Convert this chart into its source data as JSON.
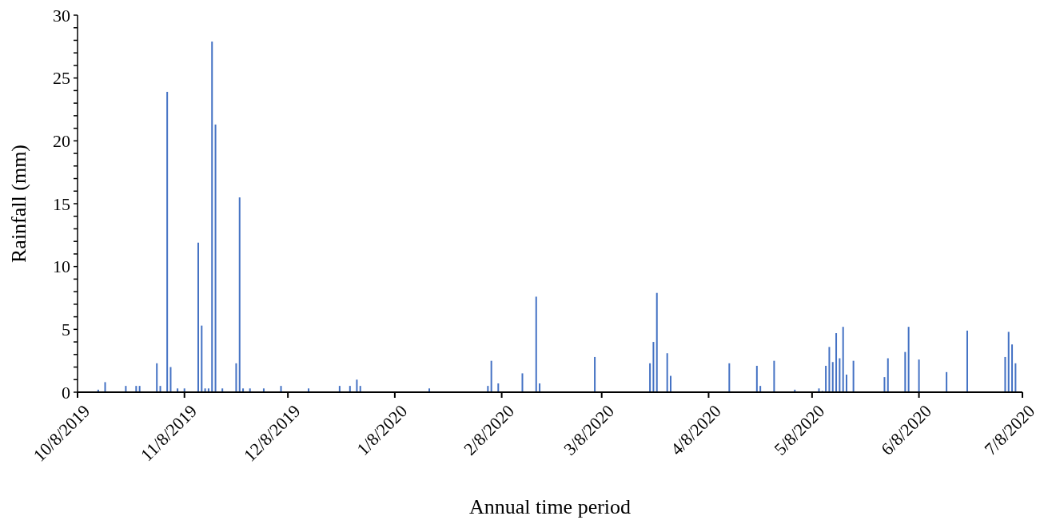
{
  "chart_data": {
    "type": "bar",
    "xlabel": "Annual time period",
    "ylabel": "Rainfall (mm)",
    "color": "#4472c4",
    "x": [
      "2019-10-14",
      "2019-10-16",
      "2019-10-22",
      "2019-10-25",
      "2019-10-26",
      "2019-10-31",
      "2019-11-01",
      "2019-11-03",
      "2019-11-04",
      "2019-11-06",
      "2019-11-08",
      "2019-11-12",
      "2019-11-13",
      "2019-11-14",
      "2019-11-15",
      "2019-11-16",
      "2019-11-17",
      "2019-11-19",
      "2019-11-23",
      "2019-11-24",
      "2019-11-25",
      "2019-11-27",
      "2019-12-01",
      "2019-12-06",
      "2019-12-14",
      "2019-12-23",
      "2019-12-26",
      "2019-12-28",
      "2019-12-29",
      "2020-01-18",
      "2020-02-04",
      "2020-02-05",
      "2020-02-07",
      "2020-02-14",
      "2020-02-18",
      "2020-02-19",
      "2020-03-06",
      "2020-03-22",
      "2020-03-23",
      "2020-03-24",
      "2020-03-27",
      "2020-03-28",
      "2020-04-14",
      "2020-04-22",
      "2020-04-23",
      "2020-04-27",
      "2020-05-03",
      "2020-05-10",
      "2020-05-11",
      "2020-05-12",
      "2020-05-13",
      "2020-05-14",
      "2020-05-15",
      "2020-05-16",
      "2020-05-17",
      "2020-05-18",
      "2020-05-20",
      "2020-05-29",
      "2020-05-30",
      "2020-06-04",
      "2020-06-05",
      "2020-06-08",
      "2020-06-16",
      "2020-06-22",
      "2020-07-03",
      "2020-07-04",
      "2020-07-05",
      "2020-07-06"
    ],
    "values": [
      0.2,
      0.8,
      0.5,
      0.5,
      0.5,
      2.3,
      0.5,
      23.9,
      2.0,
      0.3,
      0.3,
      11.9,
      5.3,
      0.3,
      0.3,
      27.9,
      21.3,
      0.3,
      2.3,
      15.5,
      0.3,
      0.3,
      0.3,
      0.5,
      0.3,
      0.5,
      0.5,
      1.0,
      0.5,
      0.3,
      0.5,
      2.5,
      0.7,
      1.5,
      7.6,
      0.7,
      2.8,
      2.3,
      4.0,
      7.9,
      3.1,
      1.3,
      2.3,
      2.1,
      0.5,
      2.5,
      0.2,
      0.3,
      0.1,
      2.1,
      3.6,
      2.4,
      4.7,
      2.7,
      5.2,
      1.4,
      2.5,
      1.2,
      2.7,
      3.2,
      5.2,
      2.6,
      1.6,
      4.9,
      2.8,
      4.8,
      3.8,
      2.3
    ],
    "xlim": [
      "2019-10-08",
      "2020-07-08"
    ],
    "xticks": [
      {
        "value": "2019-10-08",
        "label": "10/8/2019"
      },
      {
        "value": "2019-11-08",
        "label": "11/8/2019"
      },
      {
        "value": "2019-12-08",
        "label": "12/8/2019"
      },
      {
        "value": "2020-01-08",
        "label": "1/8/2020"
      },
      {
        "value": "2020-02-08",
        "label": "2/8/2020"
      },
      {
        "value": "2020-03-08",
        "label": "3/8/2020"
      },
      {
        "value": "2020-04-08",
        "label": "4/8/2020"
      },
      {
        "value": "2020-05-08",
        "label": "5/8/2020"
      },
      {
        "value": "2020-06-08",
        "label": "6/8/2020"
      },
      {
        "value": "2020-07-08",
        "label": "7/8/2020"
      }
    ],
    "ylim": [
      0,
      30
    ],
    "yticks": [
      0,
      {
        "value": 1,
        "label": null
      },
      {
        "value": 2,
        "label": null
      },
      {
        "value": 3,
        "label": null
      },
      {
        "value": 4,
        "label": null
      },
      5,
      {
        "value": 6,
        "label": null
      },
      {
        "value": 7,
        "label": null
      },
      {
        "value": 8,
        "label": null
      },
      {
        "value": 9,
        "label": null
      },
      10,
      {
        "value": 11,
        "label": null
      },
      {
        "value": 12,
        "label": null
      },
      {
        "value": 13,
        "label": null
      },
      {
        "value": 14,
        "label": null
      },
      15,
      {
        "value": 16,
        "label": null
      },
      {
        "value": 17,
        "label": null
      },
      {
        "value": 18,
        "label": null
      },
      {
        "value": 19,
        "label": null
      },
      20,
      {
        "value": 21,
        "label": null
      },
      {
        "value": 22,
        "label": null
      },
      {
        "value": 23,
        "label": null
      },
      {
        "value": 24,
        "label": null
      },
      25,
      {
        "value": 26,
        "label": null
      },
      {
        "value": 27,
        "label": null
      },
      {
        "value": 28,
        "label": null
      },
      {
        "value": 29,
        "label": null
      },
      30
    ],
    "grid": false
  }
}
